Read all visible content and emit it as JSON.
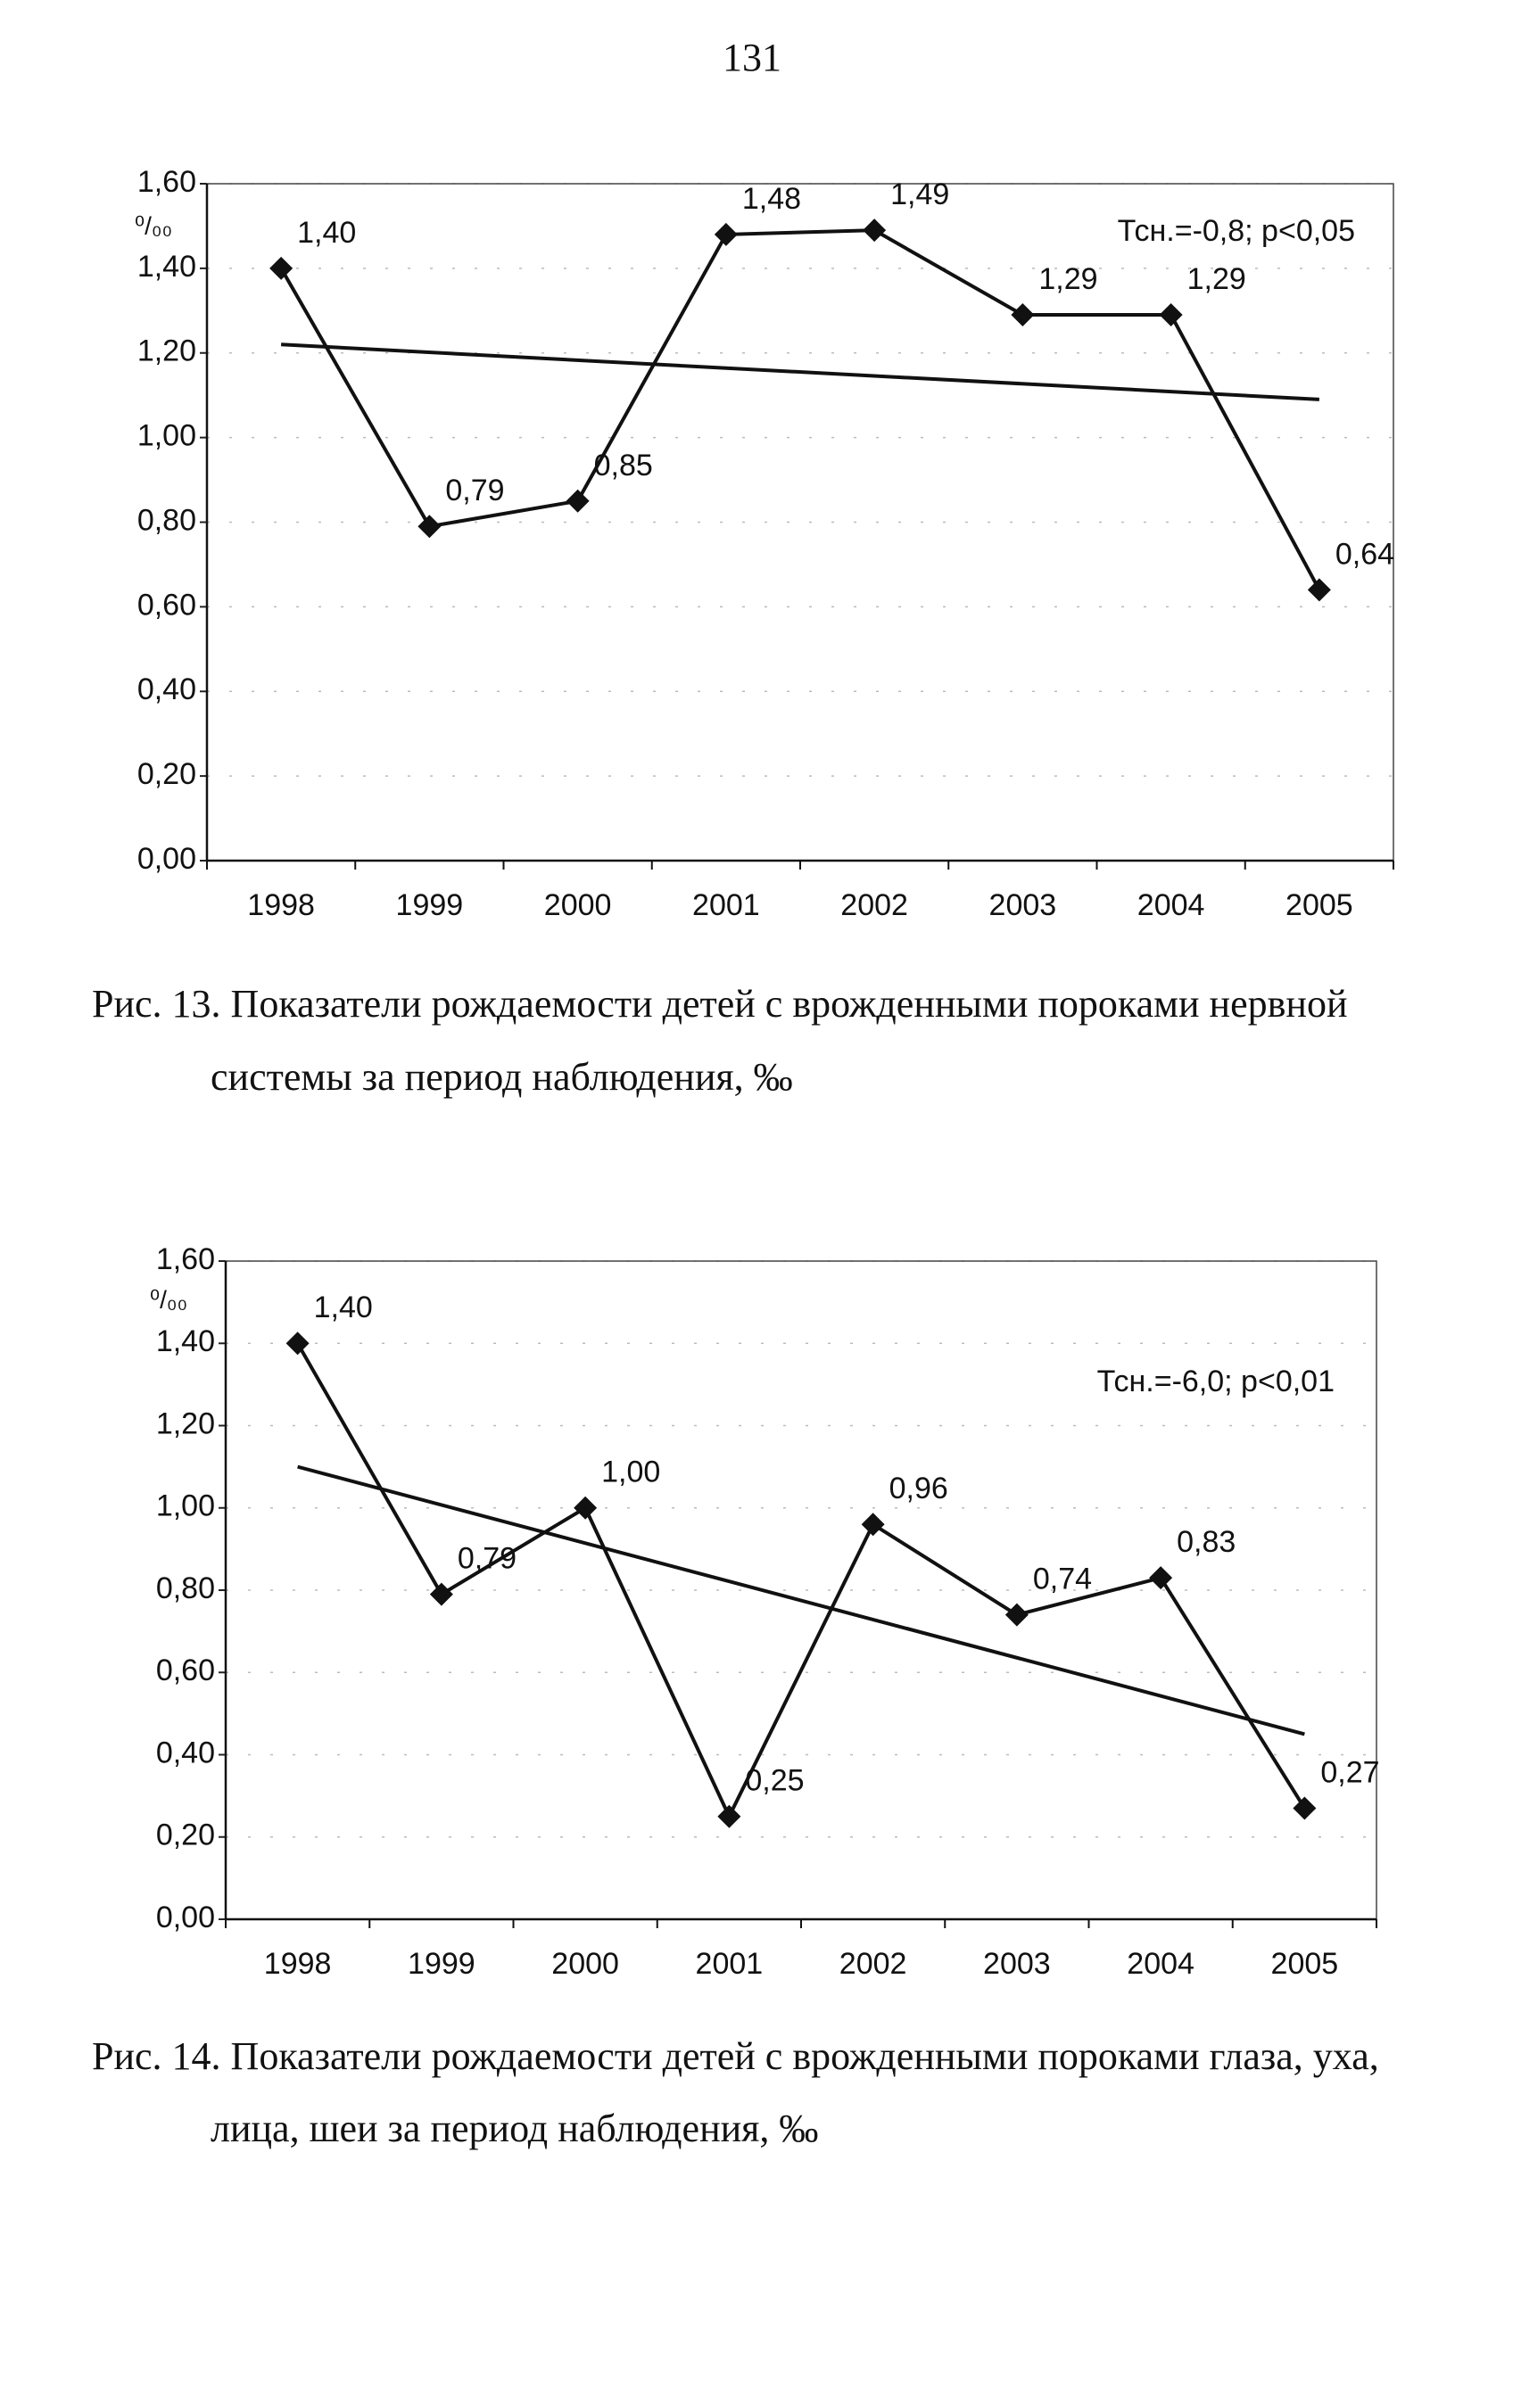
{
  "page_number": "131",
  "chart_data": [
    {
      "type": "line",
      "y_label": "⁰/₀₀",
      "annotation": "Тсн.=-0,8; р<0,05",
      "categories": [
        "1998",
        "1999",
        "2000",
        "2001",
        "2002",
        "2003",
        "2004",
        "2005"
      ],
      "values": [
        1.4,
        0.79,
        0.85,
        1.48,
        1.49,
        1.29,
        1.29,
        0.64
      ],
      "value_labels": [
        "1,40",
        "0,79",
        "0,85",
        "1,48",
        "1,49",
        "1,29",
        "1,29",
        "0,64"
      ],
      "trend": [
        1.22,
        1.09
      ],
      "color": "#111111",
      "grid": true,
      "ylim": [
        0,
        1.6
      ],
      "yticks": [
        {
          "value": 0,
          "label": "0,00"
        },
        {
          "value": 0.2,
          "label": "0,20"
        },
        {
          "value": 0.4,
          "label": "0,40"
        },
        {
          "value": 0.6,
          "label": "0,60"
        },
        {
          "value": 0.8,
          "label": "0,80"
        },
        {
          "value": 1.0,
          "label": "1,00"
        },
        {
          "value": 1.2,
          "label": "1,20"
        },
        {
          "value": 1.4,
          "label": "1,40"
        },
        {
          "value": 1.6,
          "label": "1,60"
        }
      ],
      "caption_lines": [
        "Рис. 13. Показатели рождаемости детей с врожденными пороками нервной",
        "системы за период наблюдения, ‰"
      ]
    },
    {
      "type": "line",
      "y_label": "⁰/₀₀",
      "annotation": "Тсн.=-6,0; р<0,01",
      "categories": [
        "1998",
        "1999",
        "2000",
        "2001",
        "2002",
        "2003",
        "2004",
        "2005"
      ],
      "values": [
        1.4,
        0.79,
        1.0,
        0.25,
        0.96,
        0.74,
        0.83,
        0.27
      ],
      "value_labels": [
        "1,40",
        "0,79",
        "1,00",
        "0,25",
        "0,96",
        "0,74",
        "0,83",
        "0,27"
      ],
      "trend": [
        1.1,
        0.45
      ],
      "color": "#111111",
      "grid": true,
      "ylim": [
        0,
        1.6
      ],
      "yticks": [
        {
          "value": 0,
          "label": "0,00"
        },
        {
          "value": 0.2,
          "label": "0,20"
        },
        {
          "value": 0.4,
          "label": "0,40"
        },
        {
          "value": 0.6,
          "label": "0,60"
        },
        {
          "value": 0.8,
          "label": "0,80"
        },
        {
          "value": 1.0,
          "label": "1,00"
        },
        {
          "value": 1.2,
          "label": "1,20"
        },
        {
          "value": 1.4,
          "label": "1,40"
        },
        {
          "value": 1.6,
          "label": "1,60"
        }
      ],
      "caption_lines": [
        "Рис. 14. Показатели рождаемости детей с врожденными пороками глаза, уха,",
        "лица, шеи за период наблюдения, ‰"
      ]
    }
  ]
}
